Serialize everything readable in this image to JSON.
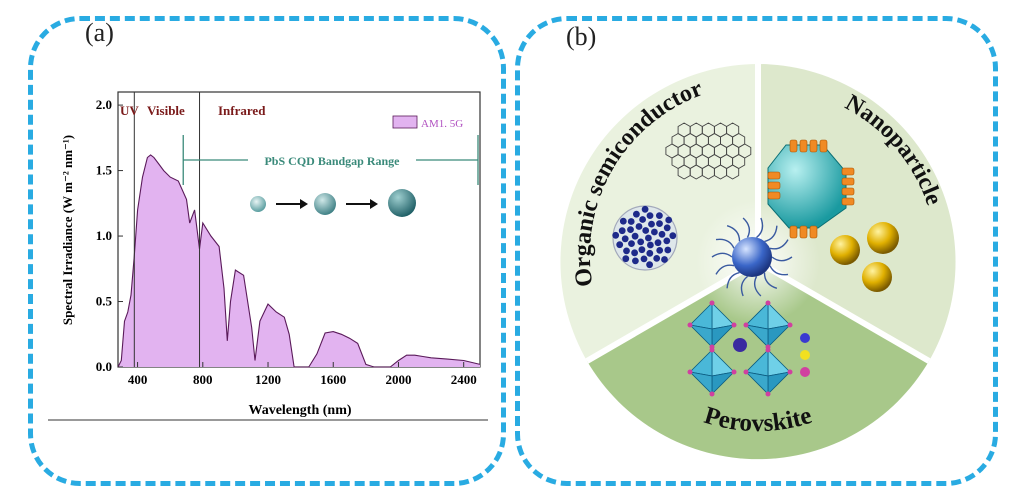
{
  "panel_a": {
    "label": "(a)",
    "regions": [
      "UV",
      "Visible",
      "Infrared"
    ],
    "legend": "AM1. 5G",
    "range_label": "PbS CQD Bandgap Range",
    "xlabel": "Wavelength (nm)",
    "ylabel": "Spectral Irradiance (W m⁻² nm⁻¹)",
    "xticks": [
      "400",
      "800",
      "1200",
      "1600",
      "2000",
      "2400"
    ],
    "yticks": [
      "0.0",
      "0.5",
      "1.0",
      "1.5",
      "2.0"
    ]
  },
  "panel_b": {
    "label": "(b)",
    "segments": [
      "Organic semiconductor",
      "Nanoparticle",
      "Perovskite"
    ]
  },
  "colors": {
    "border": "#29abe2",
    "spectrum_fill": "#e2b3f0",
    "spectrum_line": "#5a1a5a",
    "region_text": "#7a1a1a",
    "range_arrow": "#3a8a7a",
    "circle_light": "#eaf2df",
    "circle_mid": "#dde8cc",
    "circle_dark": "#a8c88a"
  },
  "chart_data": {
    "type": "area",
    "title": "",
    "xlabel": "Wavelength (nm)",
    "ylabel": "Spectral Irradiance (W m⁻² nm⁻¹)",
    "xlim": [
      280,
      2500
    ],
    "ylim": [
      0,
      2.1
    ],
    "series": [
      {
        "name": "AM1. 5G",
        "x": [
          280,
          300,
          320,
          340,
          360,
          380,
          400,
          430,
          460,
          480,
          500,
          530,
          560,
          600,
          650,
          700,
          720,
          750,
          780,
          800,
          850,
          900,
          930,
          950,
          970,
          1000,
          1050,
          1100,
          1120,
          1150,
          1200,
          1250,
          1300,
          1330,
          1360,
          1400,
          1450,
          1500,
          1550,
          1600,
          1650,
          1700,
          1750,
          1800,
          1850,
          1900,
          1950,
          2000,
          2050,
          2100,
          2150,
          2200,
          2300,
          2400,
          2500
        ],
        "y": [
          0.0,
          0.05,
          0.35,
          0.42,
          0.55,
          0.85,
          1.2,
          1.45,
          1.6,
          1.62,
          1.6,
          1.55,
          1.5,
          1.45,
          1.42,
          1.28,
          1.1,
          1.2,
          0.9,
          1.1,
          1.0,
          0.92,
          0.6,
          0.2,
          0.5,
          0.74,
          0.7,
          0.3,
          0.05,
          0.35,
          0.48,
          0.42,
          0.38,
          0.25,
          0.0,
          0.0,
          0.0,
          0.1,
          0.26,
          0.27,
          0.25,
          0.22,
          0.18,
          0.02,
          0.0,
          0.0,
          0.0,
          0.05,
          0.09,
          0.09,
          0.08,
          0.07,
          0.06,
          0.05,
          0.02
        ]
      }
    ],
    "bandgap_range": [
      680,
      2500
    ],
    "region_dividers": [
      380,
      780
    ],
    "legend_position": "top-right",
    "grid": false
  }
}
